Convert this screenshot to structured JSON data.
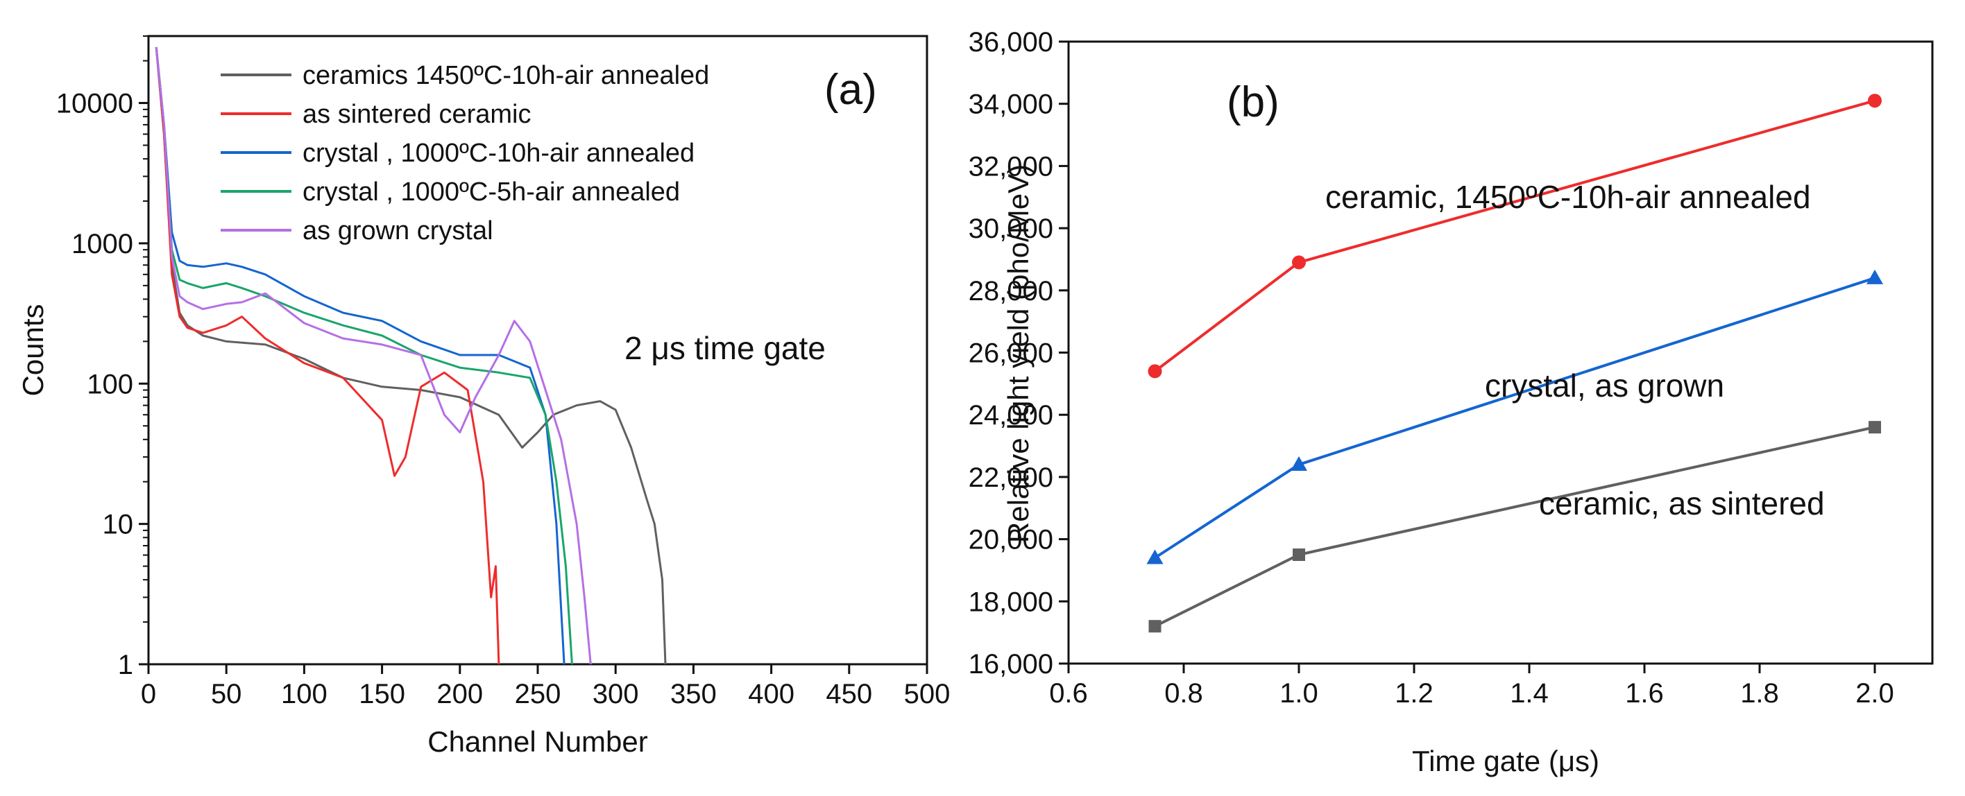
{
  "chart_data": [
    {
      "panel": "(a)",
      "type": "line",
      "xlabel": "Channel Number",
      "ylabel": "Counts",
      "xlim": [
        0,
        500
      ],
      "ylim": [
        1,
        30000
      ],
      "yscale": "log",
      "x_ticks": [
        "0",
        "50",
        "100",
        "150",
        "200",
        "250",
        "300",
        "350",
        "400",
        "450",
        "500"
      ],
      "y_ticks": [
        "1",
        "10",
        "100",
        "1000",
        "10000"
      ],
      "annotation": "2 μs time gate",
      "legend_position": "top-right",
      "series": [
        {
          "name": "ceramics 1450ºC-10h-air annealed",
          "color": "#606060",
          "x": [
            5,
            10,
            15,
            20,
            25,
            35,
            50,
            75,
            100,
            125,
            150,
            175,
            200,
            225,
            240,
            250,
            260,
            275,
            290,
            300,
            310,
            320,
            325,
            330,
            332
          ],
          "y": [
            25000,
            6000,
            700,
            320,
            260,
            220,
            200,
            190,
            150,
            110,
            95,
            90,
            80,
            60,
            35,
            45,
            60,
            70,
            75,
            65,
            35,
            15,
            10,
            4,
            1
          ]
        },
        {
          "name": "as sintered ceramic",
          "color": "#ee2c2c",
          "x": [
            5,
            10,
            15,
            20,
            25,
            35,
            50,
            60,
            75,
            100,
            125,
            150,
            158,
            165,
            175,
            190,
            205,
            215,
            220,
            223,
            225
          ],
          "y": [
            25000,
            6000,
            600,
            300,
            250,
            230,
            260,
            300,
            210,
            140,
            110,
            55,
            22,
            30,
            95,
            120,
            90,
            20,
            3,
            5,
            1
          ]
        },
        {
          "name": "crystal , 1000ºC-10h-air annealed",
          "color": "#1465d1",
          "x": [
            5,
            10,
            15,
            20,
            25,
            35,
            50,
            60,
            75,
            100,
            125,
            150,
            175,
            200,
            225,
            245,
            255,
            262,
            267
          ],
          "y": [
            25000,
            7000,
            1200,
            750,
            700,
            680,
            720,
            680,
            600,
            420,
            320,
            280,
            200,
            160,
            160,
            130,
            60,
            10,
            1
          ]
        },
        {
          "name": "crystal , 1000ºC-5h-air annealed",
          "color": "#1aa56a",
          "x": [
            5,
            10,
            15,
            20,
            25,
            35,
            50,
            60,
            75,
            100,
            125,
            150,
            175,
            200,
            225,
            245,
            255,
            262,
            268,
            272
          ],
          "y": [
            25000,
            7000,
            900,
            550,
            520,
            480,
            520,
            480,
            420,
            320,
            260,
            220,
            160,
            130,
            120,
            110,
            60,
            20,
            5,
            1
          ]
        },
        {
          "name": "as grown crystal",
          "color": "#b56fe6",
          "x": [
            5,
            10,
            15,
            20,
            25,
            35,
            50,
            60,
            75,
            100,
            125,
            150,
            175,
            190,
            200,
            210,
            225,
            235,
            245,
            255,
            265,
            275,
            280,
            284
          ],
          "y": [
            25000,
            7000,
            800,
            420,
            380,
            340,
            370,
            380,
            440,
            270,
            210,
            190,
            160,
            60,
            45,
            80,
            160,
            280,
            200,
            90,
            40,
            10,
            3,
            1
          ]
        }
      ]
    },
    {
      "panel": "(b)",
      "type": "line",
      "xlabel": "Time gate (μs)",
      "ylabel": "Relative light yield (pho/MeV)",
      "xlim": [
        0.6,
        2.1
      ],
      "ylim": [
        16000,
        36000
      ],
      "x_ticks": [
        "0.6",
        "0.8",
        "1.0",
        "1.2",
        "1.4",
        "1.6",
        "1.8",
        "2.0"
      ],
      "y_ticks": [
        "16,000",
        "18,000",
        "20,000",
        "22,000",
        "24,000",
        "26,000",
        "28,000",
        "30,000",
        "32,000",
        "34,000",
        "36,000"
      ],
      "series": [
        {
          "name": "ceramic, 1450ºC-10h-air annealed",
          "color": "#ee2c2c",
          "marker": "circle",
          "x": [
            0.75,
            1.0,
            2.0
          ],
          "y": [
            25400,
            28900,
            34100
          ]
        },
        {
          "name": "crystal, as grown",
          "color": "#1465d1",
          "marker": "triangle",
          "x": [
            0.75,
            1.0,
            2.0
          ],
          "y": [
            19400,
            22400,
            28400
          ]
        },
        {
          "name": "ceramic, as sintered",
          "color": "#606060",
          "marker": "square",
          "x": [
            0.75,
            1.0,
            2.0
          ],
          "y": [
            17200,
            19500,
            23600
          ]
        }
      ]
    }
  ]
}
